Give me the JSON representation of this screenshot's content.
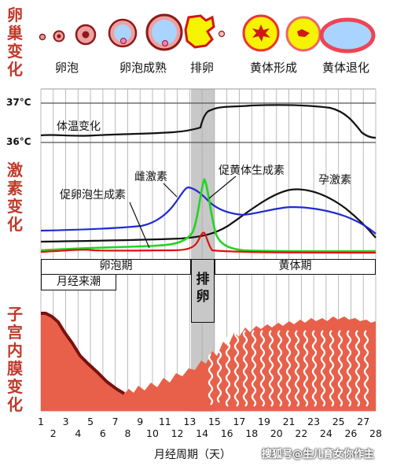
{
  "labels": {
    "ovary_change": [
      "卵",
      "巢",
      "变",
      "化"
    ],
    "hormone_change": [
      "激",
      "素",
      "变",
      "化"
    ],
    "uterus_change": [
      "子",
      "宫",
      "内",
      "膜",
      "变",
      "化"
    ]
  },
  "ovary_stages": [
    "卵泡",
    "卵泡成熟",
    "排卵",
    "黄体形成",
    "黄体退化"
  ],
  "temperature": {
    "high": "37°C",
    "low": "36°C",
    "curve_label": "体温变化"
  },
  "hormones": {
    "estrogen": "雌激素",
    "lh": "促黄体生成素",
    "fsh": "促卵泡生成素",
    "progesterone": "孕激素"
  },
  "phases": {
    "follicular": "卵泡期",
    "luteal": "黄体期",
    "menstruation": "月经来潮",
    "ovulation": [
      "排",
      "卵"
    ]
  },
  "x_axis": {
    "label": "月经周期（天）",
    "days_upper": [
      "1",
      "3",
      "5",
      "7",
      "9",
      "11",
      "13",
      "15",
      "17",
      "19",
      "21",
      "23",
      "25",
      "27"
    ],
    "days_lower": [
      "2",
      "4",
      "6",
      "8",
      "10",
      "12",
      "14",
      "16",
      "18",
      "20",
      "22",
      "24",
      "26",
      "28"
    ]
  },
  "watermark": "搜狐号@生儿育女你作主",
  "colors": {
    "estrogen": "#1f2ad1",
    "lh": "#22d422",
    "fsh": "#e01010",
    "progesterone": "#111111",
    "endometrium": "#e8604a",
    "ovulation_band": "#c8c8c8",
    "title": "#c0392b"
  }
}
